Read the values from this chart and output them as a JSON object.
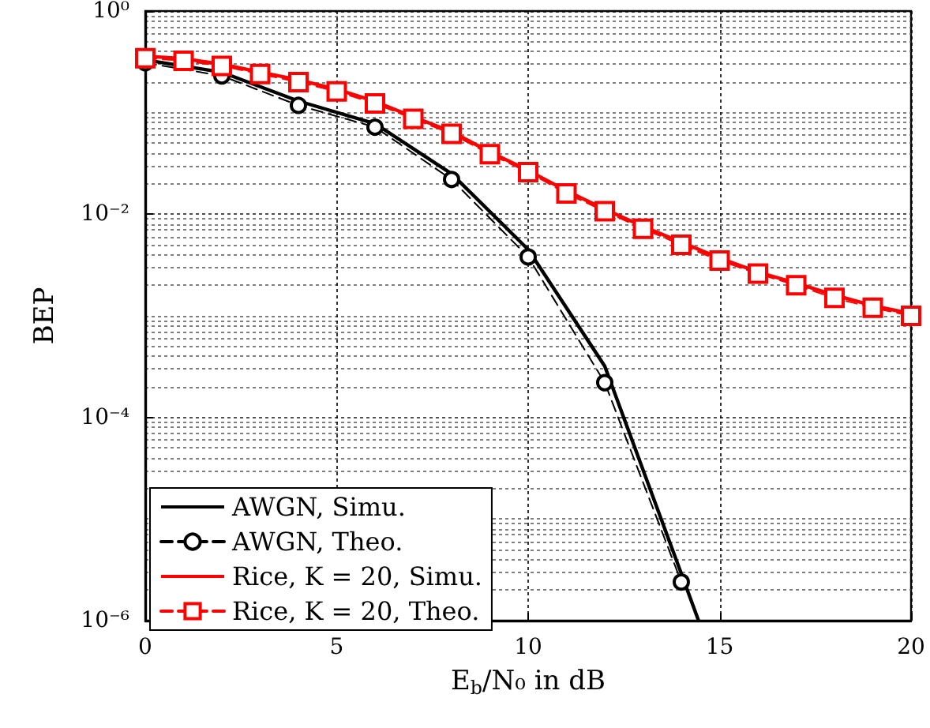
{
  "chart_data": {
    "type": "line",
    "xlabel": "E$_{b}$/N₀ in dB",
    "ylabel": "BEP",
    "log": "y",
    "grid": true,
    "legend": "bottom left",
    "xlim": [
      0,
      20
    ],
    "xticks": [
      0,
      5,
      10,
      15,
      20
    ],
    "ylim": [
      1e-06,
      1
    ],
    "yticks": [
      {
        "value": 1,
        "label": "10⁰"
      },
      {
        "value": 0.01,
        "label": "10⁻²"
      },
      {
        "value": 0.0001,
        "label": "10⁻⁴"
      },
      {
        "value": 1e-06,
        "label": "10⁻⁶"
      }
    ],
    "series": [
      {
        "name": "AWGN, Simu.",
        "color": "#000000",
        "marker": "none",
        "line_style": "solid",
        "x": [
          0,
          2,
          4,
          6,
          8,
          10,
          12,
          14,
          14.45
        ],
        "values": [
          0.33,
          0.25,
          0.13,
          0.078,
          0.025,
          0.0045,
          0.00032,
          2.9e-06,
          1e-06
        ]
      },
      {
        "name": "AWGN, Theo.",
        "color": "#000000",
        "marker": "circle",
        "line_style": "dashed",
        "x": [
          0,
          2,
          4,
          6,
          8,
          10,
          12,
          14
        ],
        "values": [
          0.31,
          0.23,
          0.118,
          0.072,
          0.022,
          0.0038,
          0.00022,
          2.4e-06
        ]
      },
      {
        "name": "Rice, K = 20, Simu.",
        "color": "#ff0000",
        "marker": "none",
        "line_style": "solid",
        "x": [
          0,
          1,
          2,
          3,
          4,
          5,
          6,
          7,
          8,
          9,
          10,
          11,
          12,
          13,
          14,
          15,
          16,
          17,
          18,
          19,
          20
        ],
        "values": [
          0.36,
          0.34,
          0.3,
          0.25,
          0.21,
          0.17,
          0.129,
          0.091,
          0.065,
          0.041,
          0.027,
          0.017,
          0.0112,
          0.0076,
          0.0053,
          0.0037,
          0.0027,
          0.0021,
          0.0016,
          0.00126,
          0.00105
        ]
      },
      {
        "name": "Rice, K = 20, Theo.",
        "color": "#ff0000",
        "marker": "square",
        "line_style": "dashed",
        "x": [
          0,
          1,
          2,
          3,
          4,
          5,
          6,
          7,
          8,
          9,
          10,
          11,
          12,
          13,
          14,
          15,
          16,
          17,
          18,
          19,
          20
        ],
        "values": [
          0.344,
          0.324,
          0.288,
          0.24,
          0.2,
          0.162,
          0.123,
          0.087,
          0.062,
          0.039,
          0.026,
          0.016,
          0.0107,
          0.0072,
          0.005,
          0.0035,
          0.0026,
          0.002,
          0.0015,
          0.0012,
          0.001
        ]
      }
    ]
  }
}
